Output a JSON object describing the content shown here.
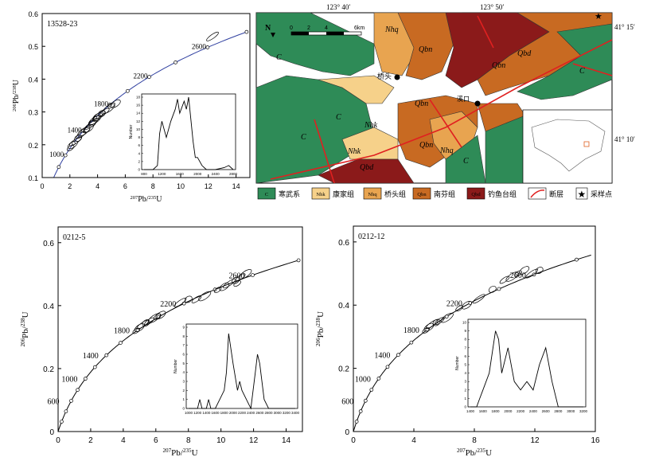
{
  "chart_data": [
    {
      "type": "concordia",
      "sample": "13528-23",
      "xlabel_sup": "207",
      "xlabel_main": "Pb/",
      "xlabel_sup2": "235",
      "xlabel_end": "U",
      "ylabel_sup": "206",
      "ylabel_main": "Pb/",
      "ylabel_sup2": "238",
      "ylabel_end": "U",
      "xlim": [
        0,
        15
      ],
      "ylim": [
        0.1,
        0.6
      ],
      "xticks": [
        0,
        2,
        4,
        6,
        8,
        10,
        12,
        14
      ],
      "yticks": [
        0.1,
        0.2,
        0.3,
        0.4,
        0.5,
        0.6
      ],
      "age_labels": [
        {
          "label": "1000",
          "age": 1000
        },
        {
          "label": "1400",
          "age": 1400
        },
        {
          "label": "1800",
          "age": 1800
        },
        {
          "label": "2200",
          "age": 2200
        },
        {
          "label": "2600",
          "age": 2600
        }
      ],
      "ellipses": [
        [
          2.05,
          0.19
        ],
        [
          2.2,
          0.2
        ],
        [
          2.4,
          0.21
        ],
        [
          2.6,
          0.22
        ],
        [
          2.8,
          0.23
        ],
        [
          3.0,
          0.24
        ],
        [
          3.2,
          0.245
        ],
        [
          3.35,
          0.25
        ],
        [
          3.5,
          0.26
        ],
        [
          3.6,
          0.265
        ],
        [
          3.7,
          0.27
        ],
        [
          3.8,
          0.275
        ],
        [
          3.9,
          0.28
        ],
        [
          4.0,
          0.285
        ],
        [
          4.1,
          0.29
        ],
        [
          4.3,
          0.295
        ],
        [
          4.5,
          0.3
        ],
        [
          4.8,
          0.31
        ],
        [
          5.0,
          0.32
        ],
        [
          5.3,
          0.325
        ],
        [
          12.3,
          0.53
        ]
      ],
      "inset": {
        "xlabel_ticks": [
          "800",
          "1200",
          "1600",
          "2000",
          "2400",
          "2800"
        ],
        "yticks": [
          "0",
          "2",
          "4",
          "6",
          "8",
          "10",
          "12",
          "14",
          "16",
          "18"
        ],
        "ylabel": "Number",
        "x": [
          800,
          1000,
          1100,
          1150,
          1200,
          1300,
          1400,
          1500,
          1550,
          1600,
          1700,
          1750,
          1800,
          1900,
          1950,
          2000,
          2100,
          2200,
          2400,
          2600,
          2700,
          2800
        ],
        "y": [
          0,
          0,
          1,
          9,
          12,
          8,
          12,
          15,
          17.5,
          14,
          17,
          15,
          18,
          7,
          3,
          3,
          1,
          0,
          0,
          0.5,
          1,
          0
        ]
      }
    },
    {
      "type": "concordia",
      "sample": "0212-5",
      "xlim": [
        0,
        15
      ],
      "ylim": [
        0,
        0.65
      ],
      "xticks": [
        0,
        2,
        4,
        6,
        8,
        10,
        12,
        14
      ],
      "yticks": [
        0,
        0.2,
        0.4,
        0.6
      ],
      "age_labels": [
        {
          "label": "600",
          "age": 600
        },
        {
          "label": "1000",
          "age": 1000
        },
        {
          "label": "1400",
          "age": 1400
        },
        {
          "label": "1800",
          "age": 1800
        },
        {
          "label": "2200",
          "age": 2200
        },
        {
          "label": "2600",
          "age": 2600
        }
      ],
      "ellipses": [
        [
          4.8,
          0.32
        ],
        [
          5.0,
          0.33
        ],
        [
          5.2,
          0.34
        ],
        [
          5.4,
          0.345
        ],
        [
          5.6,
          0.35
        ],
        [
          5.9,
          0.36
        ],
        [
          6.1,
          0.365
        ],
        [
          6.3,
          0.37
        ],
        [
          7.5,
          0.41
        ],
        [
          8.0,
          0.42
        ],
        [
          8.5,
          0.42
        ],
        [
          9.0,
          0.43
        ],
        [
          9.8,
          0.45
        ],
        [
          10.2,
          0.46
        ],
        [
          10.5,
          0.47
        ],
        [
          10.9,
          0.48
        ],
        [
          11.2,
          0.49
        ],
        [
          11.5,
          0.5
        ],
        [
          11.0,
          0.47
        ]
      ],
      "inset": {
        "xlabel_ticks": [
          "1000",
          "1200",
          "1400",
          "1600",
          "1800",
          "2000",
          "2200",
          "2400",
          "2600",
          "2800",
          "3000",
          "3200",
          "3400"
        ],
        "yticks": [
          "0",
          "1",
          "2",
          "3",
          "4",
          "5",
          "6",
          "7",
          "8",
          "9"
        ],
        "ylabel": "Number",
        "x": [
          1000,
          1200,
          1250,
          1300,
          1400,
          1450,
          1500,
          1600,
          1700,
          1800,
          1850,
          1900,
          2000,
          2100,
          2150,
          2200,
          2300,
          2400,
          2500,
          2550,
          2600,
          2700,
          2800,
          3400
        ],
        "y": [
          0,
          0,
          1,
          0,
          0,
          1,
          0,
          0,
          1,
          2,
          4,
          8.3,
          5,
          2,
          3,
          2,
          1,
          0,
          4,
          6,
          5,
          1,
          0,
          0
        ]
      }
    },
    {
      "type": "concordia",
      "sample": "0212-12",
      "xlim": [
        0,
        16
      ],
      "ylim": [
        0,
        0.65
      ],
      "xticks": [
        0,
        4,
        8,
        12,
        16
      ],
      "yticks": [
        0,
        0.2,
        0.4,
        0.6
      ],
      "age_labels": [
        {
          "label": "600",
          "age": 600
        },
        {
          "label": "1000",
          "age": 1000
        },
        {
          "label": "1400",
          "age": 1400
        },
        {
          "label": "1800",
          "age": 1800
        },
        {
          "label": "2200",
          "age": 2200
        },
        {
          "label": "2600",
          "age": 2600
        }
      ],
      "ellipses": [
        [
          4.8,
          0.32
        ],
        [
          5.0,
          0.33
        ],
        [
          5.2,
          0.34
        ],
        [
          5.5,
          0.345
        ],
        [
          5.7,
          0.35
        ],
        [
          6.2,
          0.36
        ],
        [
          7.0,
          0.39
        ],
        [
          7.5,
          0.4
        ],
        [
          8.3,
          0.42
        ],
        [
          9.2,
          0.45
        ],
        [
          10.0,
          0.48
        ],
        [
          10.5,
          0.49
        ],
        [
          10.9,
          0.5
        ],
        [
          11.3,
          0.51
        ],
        [
          11.8,
          0.5
        ],
        [
          12.3,
          0.51
        ]
      ],
      "inset": {
        "xlabel_ticks": [
          "1400",
          "1600",
          "1800",
          "2000",
          "2200",
          "2400",
          "2600",
          "2800",
          "3000",
          "3200"
        ],
        "yticks": [
          "0",
          "1",
          "2",
          "3",
          "4",
          "5",
          "6",
          "7",
          "8",
          "9",
          "10"
        ],
        "ylabel": "Number",
        "x": [
          1400,
          1500,
          1550,
          1600,
          1700,
          1800,
          1850,
          1900,
          2000,
          2100,
          2200,
          2300,
          2400,
          2500,
          2600,
          2700,
          2800,
          3200
        ],
        "y": [
          0,
          0,
          1,
          2,
          4,
          9,
          8,
          4,
          7,
          3,
          2,
          3,
          2,
          5,
          7,
          3,
          0,
          0
        ]
      }
    }
  ],
  "map": {
    "coords": {
      "lon1": "123° 40′",
      "lon2": "123° 50′",
      "lat1": "41° 15′",
      "lat2": "41° 10′"
    },
    "scale": {
      "t0": "0",
      "t2": "2",
      "t4": "4",
      "t6": "6km"
    },
    "north": "N",
    "place": "桥头",
    "place2": "溪口",
    "units": [
      "C",
      "Nhk",
      "Nhq",
      "Qbn",
      "Qbd",
      "Qbd"
    ],
    "legend": [
      {
        "sym": "C",
        "label": "寒武系",
        "color": "#2e8b57"
      },
      {
        "sym": "Nhk",
        "label": "康家组",
        "color": "#f6d18a"
      },
      {
        "sym": "Nhq",
        "label": "桥头组",
        "color": "#e8a450"
      },
      {
        "sym": "Qbn",
        "label": "南芬组",
        "color": "#c86a22"
      },
      {
        "sym": "Qbd",
        "label": "钓鱼台组",
        "color": "#8b1a1a"
      },
      {
        "sym": "",
        "label": "断层",
        "color": "#e02020"
      },
      {
        "sym": "",
        "label": "采样点",
        "color": "#e02020"
      }
    ]
  }
}
